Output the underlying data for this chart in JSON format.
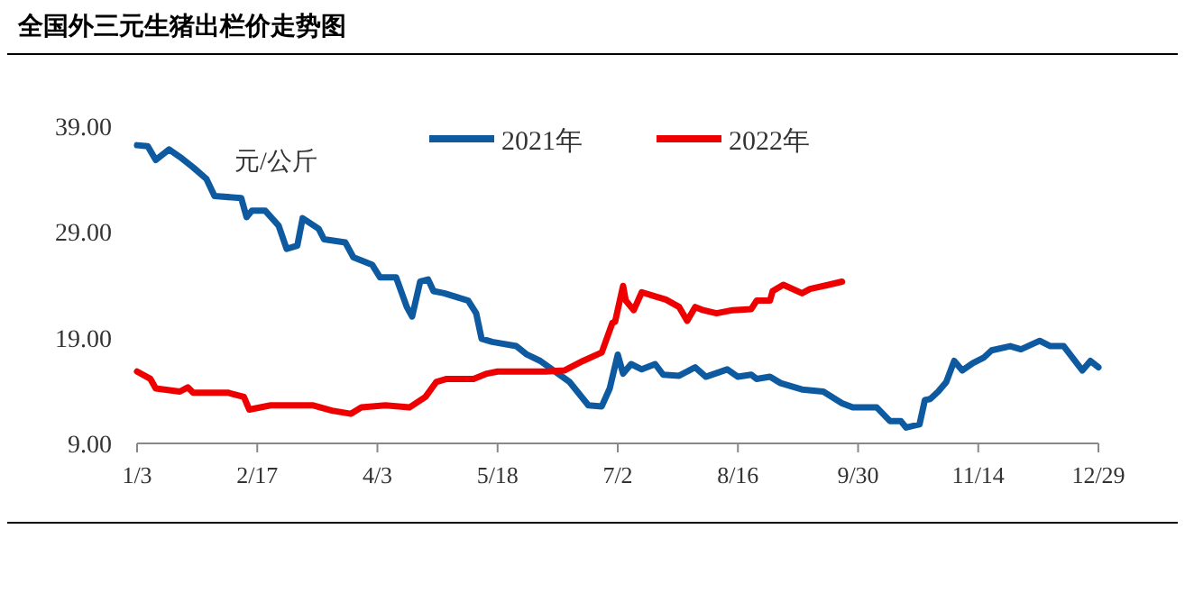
{
  "chart_data": {
    "type": "line",
    "title": "全国外三元生猪出栏价走势图",
    "ylabel": "元/公斤",
    "xlim": [
      "--01-03",
      "--12-29"
    ],
    "xticks": [
      {
        "value": "--01-03",
        "label": "1/3"
      },
      {
        "value": "--02-17",
        "label": "2/17"
      },
      {
        "value": "--04-03",
        "label": "4/3"
      },
      {
        "value": "--05-18",
        "label": "5/18"
      },
      {
        "value": "--07-02",
        "label": "7/2"
      },
      {
        "value": "--08-16",
        "label": "8/16"
      },
      {
        "value": "--09-30",
        "label": "9/30"
      },
      {
        "value": "--11-14",
        "label": "11/14"
      },
      {
        "value": "--12-29",
        "label": "12/29"
      }
    ],
    "ylim": [
      9,
      39
    ],
    "yticks": [
      {
        "value": 9,
        "label": "9.00"
      },
      {
        "value": 19,
        "label": "19.00"
      },
      {
        "value": 29,
        "label": "29.00"
      },
      {
        "value": 39,
        "label": "39.00"
      }
    ],
    "grid": false,
    "legend": "top",
    "marker": "none",
    "line_style": "solid",
    "series": [
      {
        "name": "2021年",
        "color": "#0e5aa0",
        "x": [
          "--01-03",
          "--01-07",
          "--01-10",
          "--01-15",
          "--01-19",
          "--01-24",
          "--01-29",
          "--02-01",
          "--02-11",
          "--02-13",
          "--02-15",
          "--02-20",
          "--02-25",
          "--02-28",
          "--03-04",
          "--03-06",
          "--03-12",
          "--03-14",
          "--03-22",
          "--03-25",
          "--04-01",
          "--04-04",
          "--04-10",
          "--04-14",
          "--04-16",
          "--04-19",
          "--04-22",
          "--04-24",
          "--04-28",
          "--05-07",
          "--05-10",
          "--05-12",
          "--05-16",
          "--05-25",
          "--05-29",
          "--06-03",
          "--06-08",
          "--06-14",
          "--06-21",
          "--06-26",
          "--06-29",
          "--07-02",
          "--07-04",
          "--07-07",
          "--07-11",
          "--07-16",
          "--07-19",
          "--07-25",
          "--07-31",
          "--08-04",
          "--08-12",
          "--08-16",
          "--08-21",
          "--08-23",
          "--08-28",
          "--09-01",
          "--09-09",
          "--09-17",
          "--09-24",
          "--09-28",
          "--10-07",
          "--10-12",
          "--10-16",
          "--10-18",
          "--10-23",
          "--10-25",
          "--10-27",
          "--10-30",
          "--11-02",
          "--11-05",
          "--11-08",
          "--11-12",
          "--11-16",
          "--11-19",
          "--11-26",
          "--11-30",
          "--12-07",
          "--12-11",
          "--12-16",
          "--12-23",
          "--12-26",
          "--12-29"
        ],
        "values": [
          37.2,
          37.1,
          35.8,
          36.8,
          36.1,
          35.1,
          34.0,
          32.4,
          32.2,
          30.4,
          31.0,
          31.0,
          29.6,
          27.4,
          27.7,
          30.3,
          29.3,
          28.3,
          28.0,
          26.6,
          25.9,
          24.7,
          24.7,
          21.9,
          21.0,
          24.3,
          24.5,
          23.4,
          23.2,
          22.5,
          21.3,
          18.9,
          18.6,
          18.2,
          17.4,
          16.8,
          15.9,
          14.8,
          12.6,
          12.5,
          14.2,
          17.4,
          15.6,
          16.5,
          16.0,
          16.5,
          15.5,
          15.4,
          16.2,
          15.3,
          16.0,
          15.3,
          15.5,
          15.1,
          15.3,
          14.7,
          14.1,
          13.9,
          12.8,
          12.4,
          12.4,
          11.1,
          11.1,
          10.5,
          10.8,
          13.1,
          13.2,
          13.9,
          14.8,
          16.8,
          15.9,
          16.6,
          17.1,
          17.8,
          18.2,
          17.9,
          18.7,
          18.2,
          18.2,
          15.9,
          16.8,
          16.2
        ]
      },
      {
        "name": "2022年",
        "color": "#ee0000",
        "x": [
          "--01-03",
          "--01-08",
          "--01-10",
          "--01-19",
          "--01-22",
          "--01-24",
          "--02-06",
          "--02-12",
          "--02-14",
          "--02-22",
          "--03-10",
          "--03-17",
          "--03-24",
          "--03-28",
          "--04-06",
          "--04-15",
          "--04-21",
          "--04-25",
          "--04-29",
          "--05-09",
          "--05-14",
          "--05-18",
          "--06-05",
          "--06-12",
          "--06-19",
          "--06-26",
          "--06-30",
          "--07-01",
          "--07-04",
          "--07-05",
          "--07-08",
          "--07-11",
          "--07-16",
          "--07-20",
          "--07-25",
          "--07-28",
          "--07-31",
          "--08-03",
          "--08-08",
          "--08-14",
          "--08-21",
          "--08-23",
          "--08-28",
          "--08-29",
          "--09-02",
          "--09-09",
          "--09-12",
          "--09-19",
          "--09-24"
        ],
        "values": [
          15.8,
          15.1,
          14.2,
          13.9,
          14.3,
          13.8,
          13.8,
          13.4,
          12.2,
          12.6,
          12.6,
          12.1,
          11.8,
          12.4,
          12.6,
          12.4,
          13.4,
          14.8,
          15.1,
          15.1,
          15.6,
          15.8,
          15.8,
          15.9,
          16.8,
          17.6,
          20.4,
          20.5,
          23.9,
          22.5,
          21.6,
          23.3,
          22.9,
          22.6,
          21.9,
          20.6,
          21.9,
          21.6,
          21.3,
          21.6,
          21.7,
          22.5,
          22.5,
          23.4,
          24.0,
          23.2,
          23.6,
          24.0,
          24.3
        ]
      }
    ]
  }
}
